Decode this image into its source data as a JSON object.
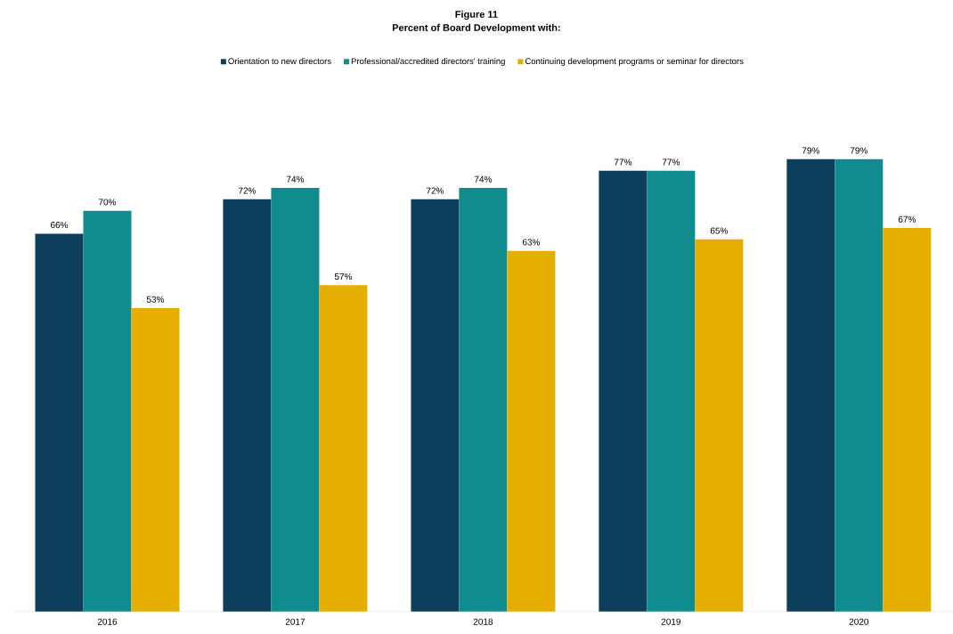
{
  "chart_data": {
    "type": "bar",
    "title": "Figure 11",
    "subtitle": "Percent of Board Development with:",
    "categories": [
      "2016",
      "2017",
      "2018",
      "2019",
      "2020"
    ],
    "series": [
      {
        "name": "Orientation to new directors",
        "color": "#0d3f5c",
        "values": [
          66,
          72,
          72,
          77,
          79
        ],
        "value_labels": [
          "66%",
          "72%",
          "72%",
          "77%",
          "79%"
        ]
      },
      {
        "name": "Professional/accredited directors' training",
        "color": "#108c8e",
        "values": [
          70,
          74,
          74,
          77,
          79
        ],
        "value_labels": [
          "70%",
          "74%",
          "74%",
          "77%",
          "79%"
        ]
      },
      {
        "name": "Continuing development programs or seminar for directors",
        "color": "#e6ae00",
        "values": [
          53,
          57,
          63,
          65,
          67
        ],
        "value_labels": [
          "53%",
          "57%",
          "63%",
          "65%",
          "67%"
        ]
      }
    ],
    "legend": "top"
  }
}
